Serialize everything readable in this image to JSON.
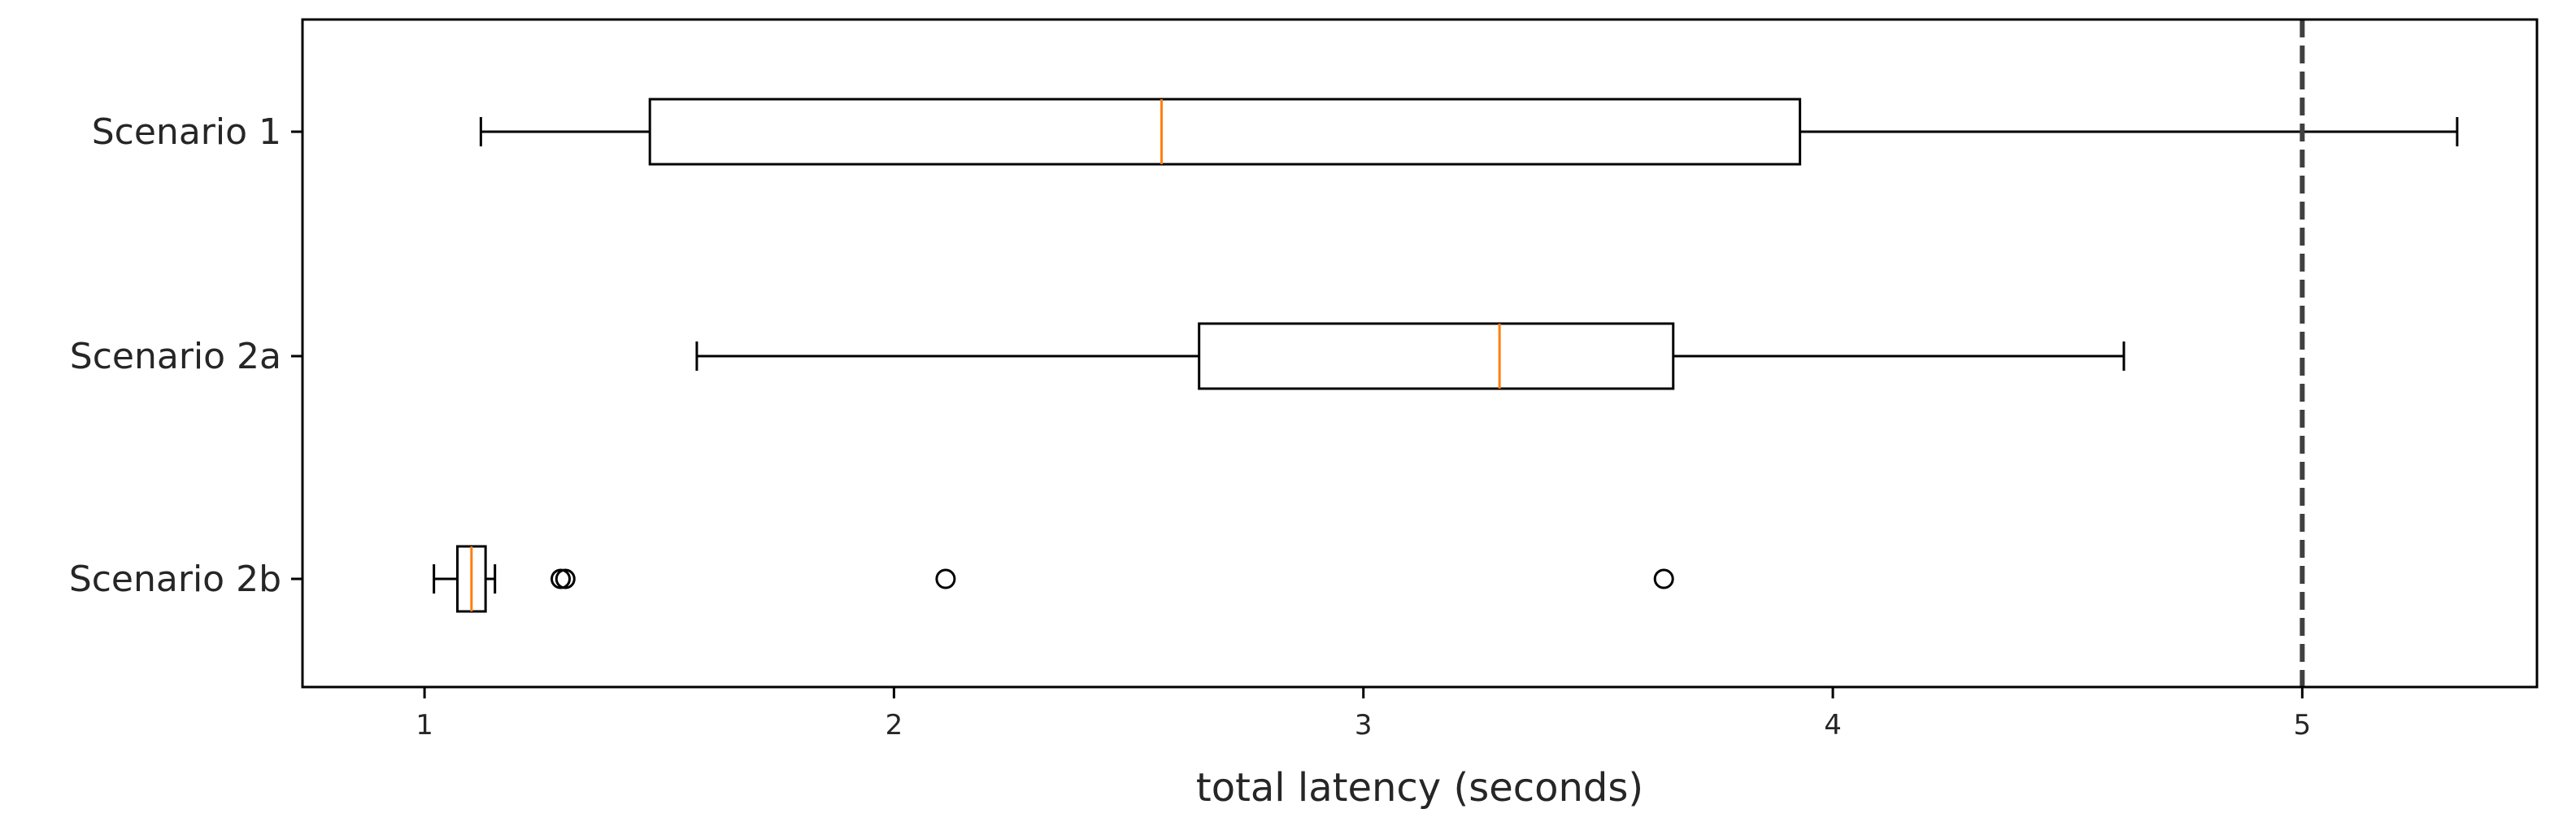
{
  "chart_data": {
    "type": "boxplot",
    "orientation": "horizontal",
    "xlabel": "total latency (seconds)",
    "ylabel": "",
    "title": "",
    "xlim": [
      0.74,
      5.5
    ],
    "xticks": [
      1,
      2,
      3,
      4,
      5
    ],
    "xtick_labels": [
      "1",
      "2",
      "3",
      "4",
      "5"
    ],
    "grid": false,
    "threshold": {
      "x": 5,
      "style": "dashed",
      "color": "#404040"
    },
    "colors": {
      "box": "#000000",
      "median": "#ff7f0e",
      "threshold": "#404040"
    },
    "categories": [
      "Scenario 1",
      "Scenario 2a",
      "Scenario 2b"
    ],
    "series": [
      {
        "category": "Scenario 1",
        "whisker_low": 1.12,
        "q1": 1.48,
        "median": 2.57,
        "q3": 3.93,
        "whisker_high": 5.33,
        "outliers": []
      },
      {
        "category": "Scenario 2a",
        "whisker_low": 1.58,
        "q1": 2.65,
        "median": 3.29,
        "q3": 3.66,
        "whisker_high": 4.62,
        "outliers": []
      },
      {
        "category": "Scenario 2b",
        "whisker_low": 1.02,
        "q1": 1.07,
        "median": 1.1,
        "q3": 1.13,
        "whisker_high": 1.15,
        "outliers": [
          1.29,
          1.3,
          2.11,
          3.64
        ]
      }
    ]
  }
}
